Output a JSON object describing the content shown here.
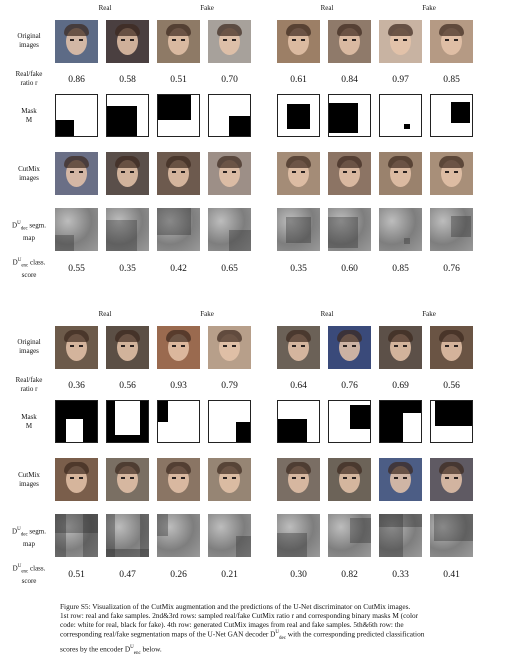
{
  "header_labels": {
    "real": "Real",
    "fake": "Fake"
  },
  "row_labels": {
    "original": "Original images",
    "ratio_line1": "Real/fake",
    "ratio_line2": "ratio r",
    "mask_line1": "Mask",
    "mask_line2": "M",
    "cutmix": "CutMix images",
    "segm_line1": "D^U_dec segm.",
    "segm_line2": "map",
    "class_line1": "D^U_enc class.",
    "class_line2": "score"
  },
  "panels": [
    {
      "ratios": [
        "0.86",
        "0.58",
        "0.51",
        "0.70"
      ],
      "scores": [
        "0.55",
        "0.35",
        "0.42",
        "0.65"
      ],
      "orig_colors": [
        "#5d6b86",
        "#4a3f40",
        "#8e7a66",
        "#a7a19b"
      ],
      "cut_colors": [
        "#6a6f86",
        "#5a4f4a",
        "#6d5a4e",
        "#9d8f87"
      ]
    },
    {
      "ratios": [
        "0.61",
        "0.84",
        "0.97",
        "0.85"
      ],
      "scores": [
        "0.35",
        "0.60",
        "0.85",
        "0.76"
      ],
      "orig_colors": [
        "#9c7f66",
        "#8f7a6a",
        "#c8b3a2",
        "#b59a84"
      ],
      "cut_colors": [
        "#a48c77",
        "#8c7464",
        "#9a826d",
        "#a88f79"
      ]
    },
    {
      "ratios": [
        "0.36",
        "0.56",
        "0.93",
        "0.79"
      ],
      "scores": [
        "0.51",
        "0.47",
        "0.26",
        "0.21"
      ],
      "orig_colors": [
        "#6c5a4a",
        "#5b4f45",
        "#9a6a4f",
        "#b79f8a"
      ],
      "cut_colors": [
        "#7a5e4b",
        "#7a6f63",
        "#8a7564",
        "#968574"
      ]
    },
    {
      "ratios": [
        "0.64",
        "0.76",
        "0.69",
        "0.56"
      ],
      "scores": [
        "0.30",
        "0.82",
        "0.33",
        "0.41"
      ],
      "orig_colors": [
        "#6b6157",
        "#3a4a7a",
        "#5c5048",
        "#6a5444"
      ],
      "cut_colors": [
        "#7a6e64",
        "#6c6358",
        "#4c5d85",
        "#5f5a63"
      ]
    }
  ],
  "caption": {
    "lines": [
      "Figure S5: Visualization of the CutMix augmentation and the predictions of the U-Net discriminator on CutMix images.",
      "1st row: real and fake samples. 2nd&3rd rows: sampled real/fake CutMix ratio r and corresponding binary masks M (color",
      "code: white for real, black for fake). 4th row: generated CutMix images from real and fake samples. 5th&6th row: the",
      "corresponding real/fake segmentation maps of the U-Net GAN decoder D^U_dec with the corresponding predicted classification",
      "scores by the encoder D^U_enc below."
    ]
  }
}
